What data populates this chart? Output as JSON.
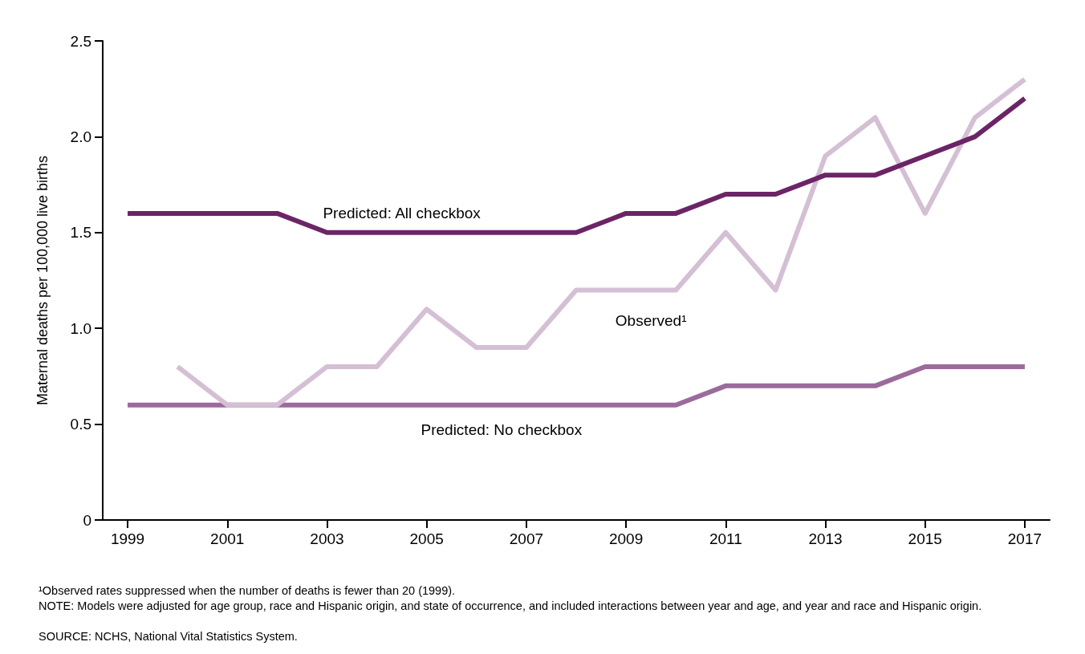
{
  "chart_data": {
    "type": "line",
    "ylabel": "Maternal deaths per 100,000 live births",
    "x": [
      1999,
      2000,
      2001,
      2002,
      2003,
      2004,
      2005,
      2006,
      2007,
      2008,
      2009,
      2010,
      2011,
      2012,
      2013,
      2014,
      2015,
      2016,
      2017
    ],
    "series": [
      {
        "name": "Predicted: All checkbox",
        "color": "#6b2466",
        "values": [
          1.6,
          1.6,
          1.6,
          1.6,
          1.5,
          1.5,
          1.5,
          1.5,
          1.5,
          1.5,
          1.6,
          1.6,
          1.7,
          1.7,
          1.8,
          1.8,
          1.9,
          2.0,
          2.2
        ]
      },
      {
        "name": "Observed¹",
        "color": "#d4bfd4",
        "values": [
          null,
          0.8,
          0.6,
          0.6,
          0.8,
          0.8,
          1.1,
          0.9,
          0.9,
          1.2,
          1.2,
          1.2,
          1.5,
          1.2,
          1.9,
          2.1,
          1.6,
          2.1,
          2.3
        ]
      },
      {
        "name": "Predicted: No checkbox",
        "color": "#9b6b9b",
        "values": [
          0.6,
          0.6,
          0.6,
          0.6,
          0.6,
          0.6,
          0.6,
          0.6,
          0.6,
          0.6,
          0.6,
          0.6,
          0.7,
          0.7,
          0.7,
          0.7,
          0.8,
          0.8,
          0.8
        ]
      }
    ],
    "xlim": [
      1998.5,
      2017.5
    ],
    "xticks": [
      1999,
      2001,
      2003,
      2005,
      2007,
      2009,
      2011,
      2013,
      2015,
      2017
    ],
    "ylim": [
      0,
      2.5
    ],
    "yticks": [
      0,
      0.5,
      {
        "value": 1,
        "label": "1.0"
      },
      1.5,
      {
        "value": 2,
        "label": "2.0"
      },
      2.5
    ],
    "grid": false,
    "legend": false,
    "marker": "none",
    "line_style": "solid",
    "annotations": [
      "¹Observed rates suppressed when the number of deaths is fewer than 20 (1999).",
      "NOTE: Models were adjusted for age group, race and Hispanic origin, and state of occurrence, and included interactions between year and age, and year and race and Hispanic origin.",
      "SOURCE: NCHS, National Vital Statistics System."
    ]
  }
}
